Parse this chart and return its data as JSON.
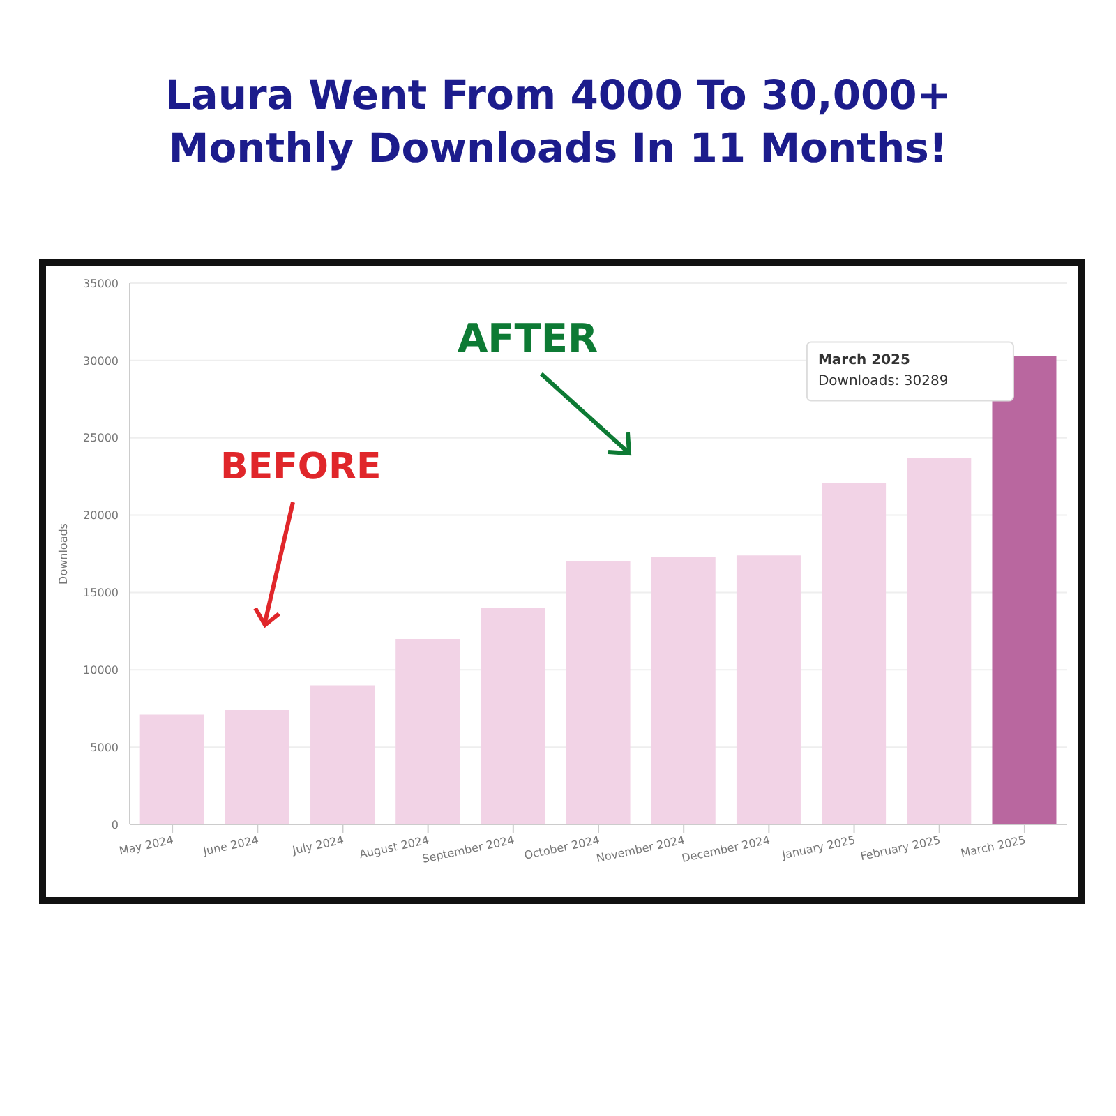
{
  "chart_data": {
    "type": "bar",
    "title": "Laura Went From 4000 To 30,000+ Monthly Downloads In 11 Months!",
    "ylabel": "Downloads",
    "categories": [
      "May 2024",
      "June 2024",
      "July 2024",
      "August 2024",
      "September 2024",
      "October 2024",
      "November 2024",
      "December 2024",
      "January 2025",
      "February 2025",
      "March 2025"
    ],
    "values": [
      7100,
      7400,
      9000,
      12000,
      14000,
      17000,
      17300,
      17400,
      22100,
      23700,
      30289
    ],
    "colors": [
      "#f2d3e6",
      "#f2d3e6",
      "#f2d3e6",
      "#f2d3e6",
      "#f2d3e6",
      "#f2d3e6",
      "#f2d3e6",
      "#f2d3e6",
      "#f2d3e6",
      "#f2d3e6",
      "#b9679f"
    ],
    "ylim": [
      0,
      35000
    ],
    "yticks": [
      0,
      5000,
      10000,
      15000,
      20000,
      25000,
      30000,
      35000
    ],
    "grid": "y",
    "legend": false,
    "annotations": [
      "BEFORE",
      "AFTER",
      "March 2025",
      "Downloads: 30289"
    ]
  }
}
